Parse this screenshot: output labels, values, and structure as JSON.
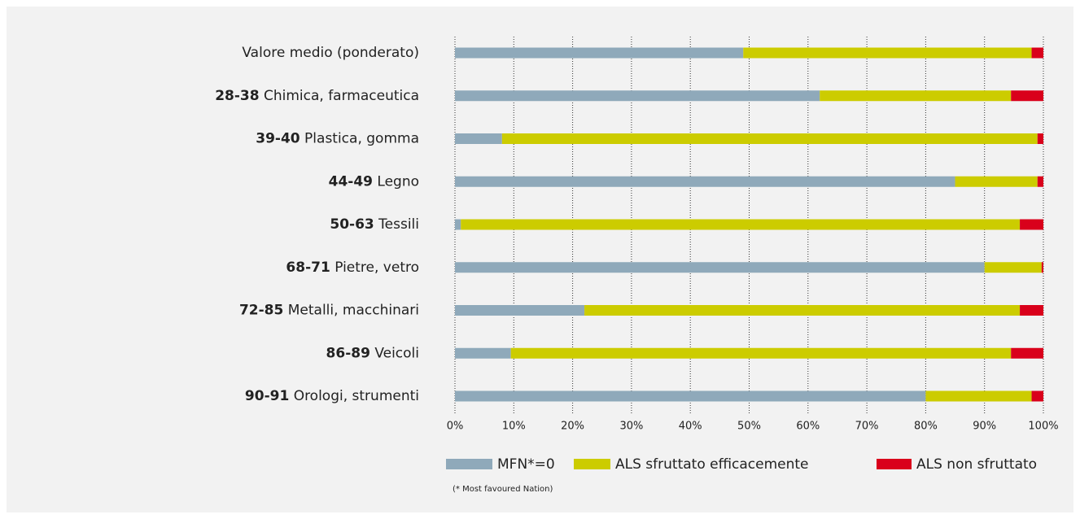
{
  "chart_data": {
    "type": "stacked_bar_horizontal",
    "category_codes": [
      null,
      "28-38",
      "39-40",
      "44-49",
      "50-63",
      "68-71",
      "72-85",
      "86-89",
      "90-91"
    ],
    "categories": [
      "Valore medio (ponderato)",
      "Chimica, farmaceutica",
      "Plastica, gomma",
      "Legno",
      "Tessili",
      "Pietre, vetro",
      "Metalli, macchinari",
      "Veicoli",
      "Orologi, strumenti"
    ],
    "series": [
      {
        "name": "MFN*=0",
        "color": "#8fa9ba",
        "values": [
          49,
          62,
          8,
          85,
          1,
          90,
          22,
          9.5,
          80
        ]
      },
      {
        "name": "ALS sfruttato efficacemente",
        "color": "#cccc00",
        "values": [
          49,
          32.5,
          91,
          14,
          95,
          9.7,
          74,
          85,
          18
        ]
      },
      {
        "name": "ALS non sfruttato",
        "color": "#d9001b",
        "values": [
          2,
          5.5,
          1,
          1,
          4,
          0.3,
          4,
          5.5,
          2
        ]
      }
    ],
    "xlim": [
      0,
      100
    ],
    "xticks": [
      {
        "value": 0,
        "label": "0%"
      },
      {
        "value": 10,
        "label": "10%"
      },
      {
        "value": 20,
        "label": "20%"
      },
      {
        "value": 30,
        "label": "30%"
      },
      {
        "value": 40,
        "label": "40%"
      },
      {
        "value": 50,
        "label": "50%"
      },
      {
        "value": 60,
        "label": "60%"
      },
      {
        "value": 70,
        "label": "70%"
      },
      {
        "value": 80,
        "label": "80%"
      },
      {
        "value": 90,
        "label": "90%"
      },
      {
        "value": 100,
        "label": "100%"
      }
    ],
    "grid": true,
    "note": "(* Most favoured Nation)"
  }
}
